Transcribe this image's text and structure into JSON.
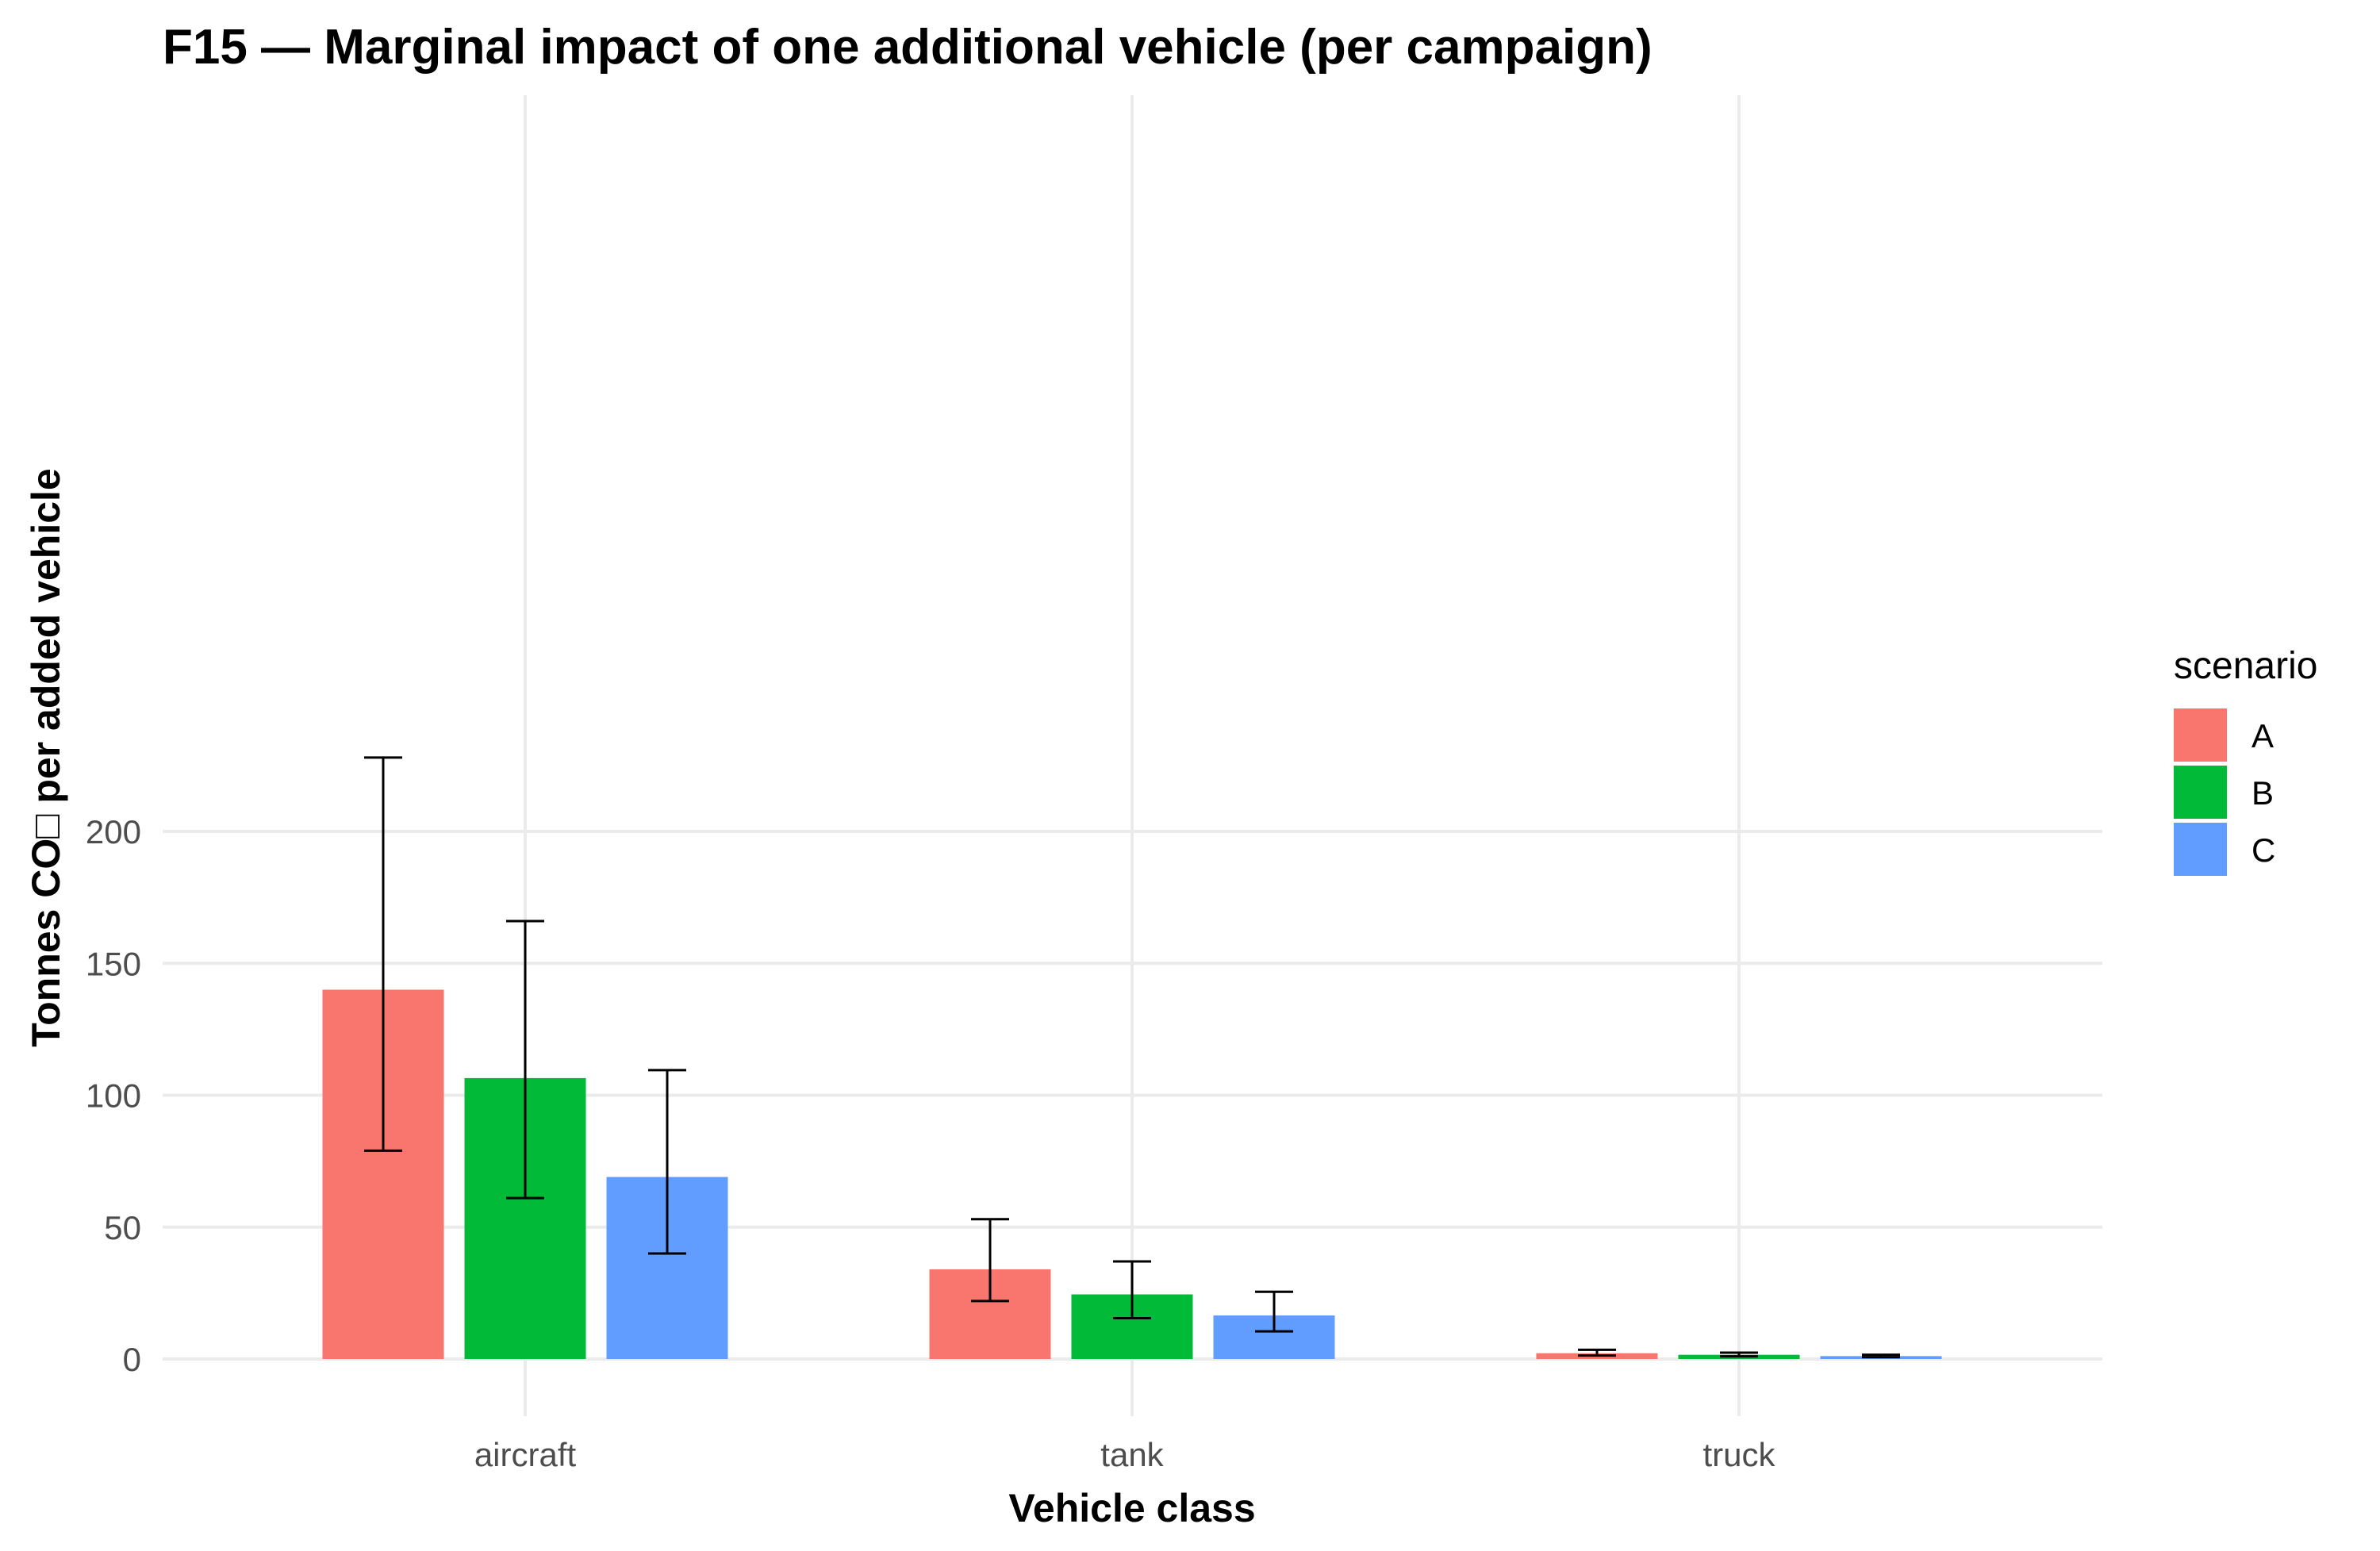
{
  "chart_data": {
    "type": "bar",
    "title": "F15 — Marginal impact of one additional vehicle (per campaign)",
    "xlabel": "Vehicle class",
    "ylabel": "Tonnes CO□ per added vehicle",
    "categories": [
      "aircraft",
      "tank",
      "truck"
    ],
    "ylim": [
      -10,
      240
    ],
    "yticks": [
      0,
      50,
      100,
      150,
      200
    ],
    "grid": true,
    "legend": {
      "title": "scenario",
      "placement": "right"
    },
    "series": [
      {
        "name": "A",
        "color": "#F8766D",
        "values": [
          140,
          34,
          2.2
        ],
        "lower": [
          79,
          22,
          1.3
        ],
        "upper": [
          228,
          53,
          3.5
        ]
      },
      {
        "name": "B",
        "color": "#00BA38",
        "values": [
          106.5,
          24.5,
          1.6
        ],
        "lower": [
          61,
          15.5,
          1.0
        ],
        "upper": [
          166,
          37,
          2.4
        ]
      },
      {
        "name": "C",
        "color": "#619CFF",
        "values": [
          69,
          16.5,
          1.1
        ],
        "lower": [
          40,
          10.5,
          0.7
        ],
        "upper": [
          109.5,
          25.5,
          1.6
        ]
      }
    ]
  }
}
